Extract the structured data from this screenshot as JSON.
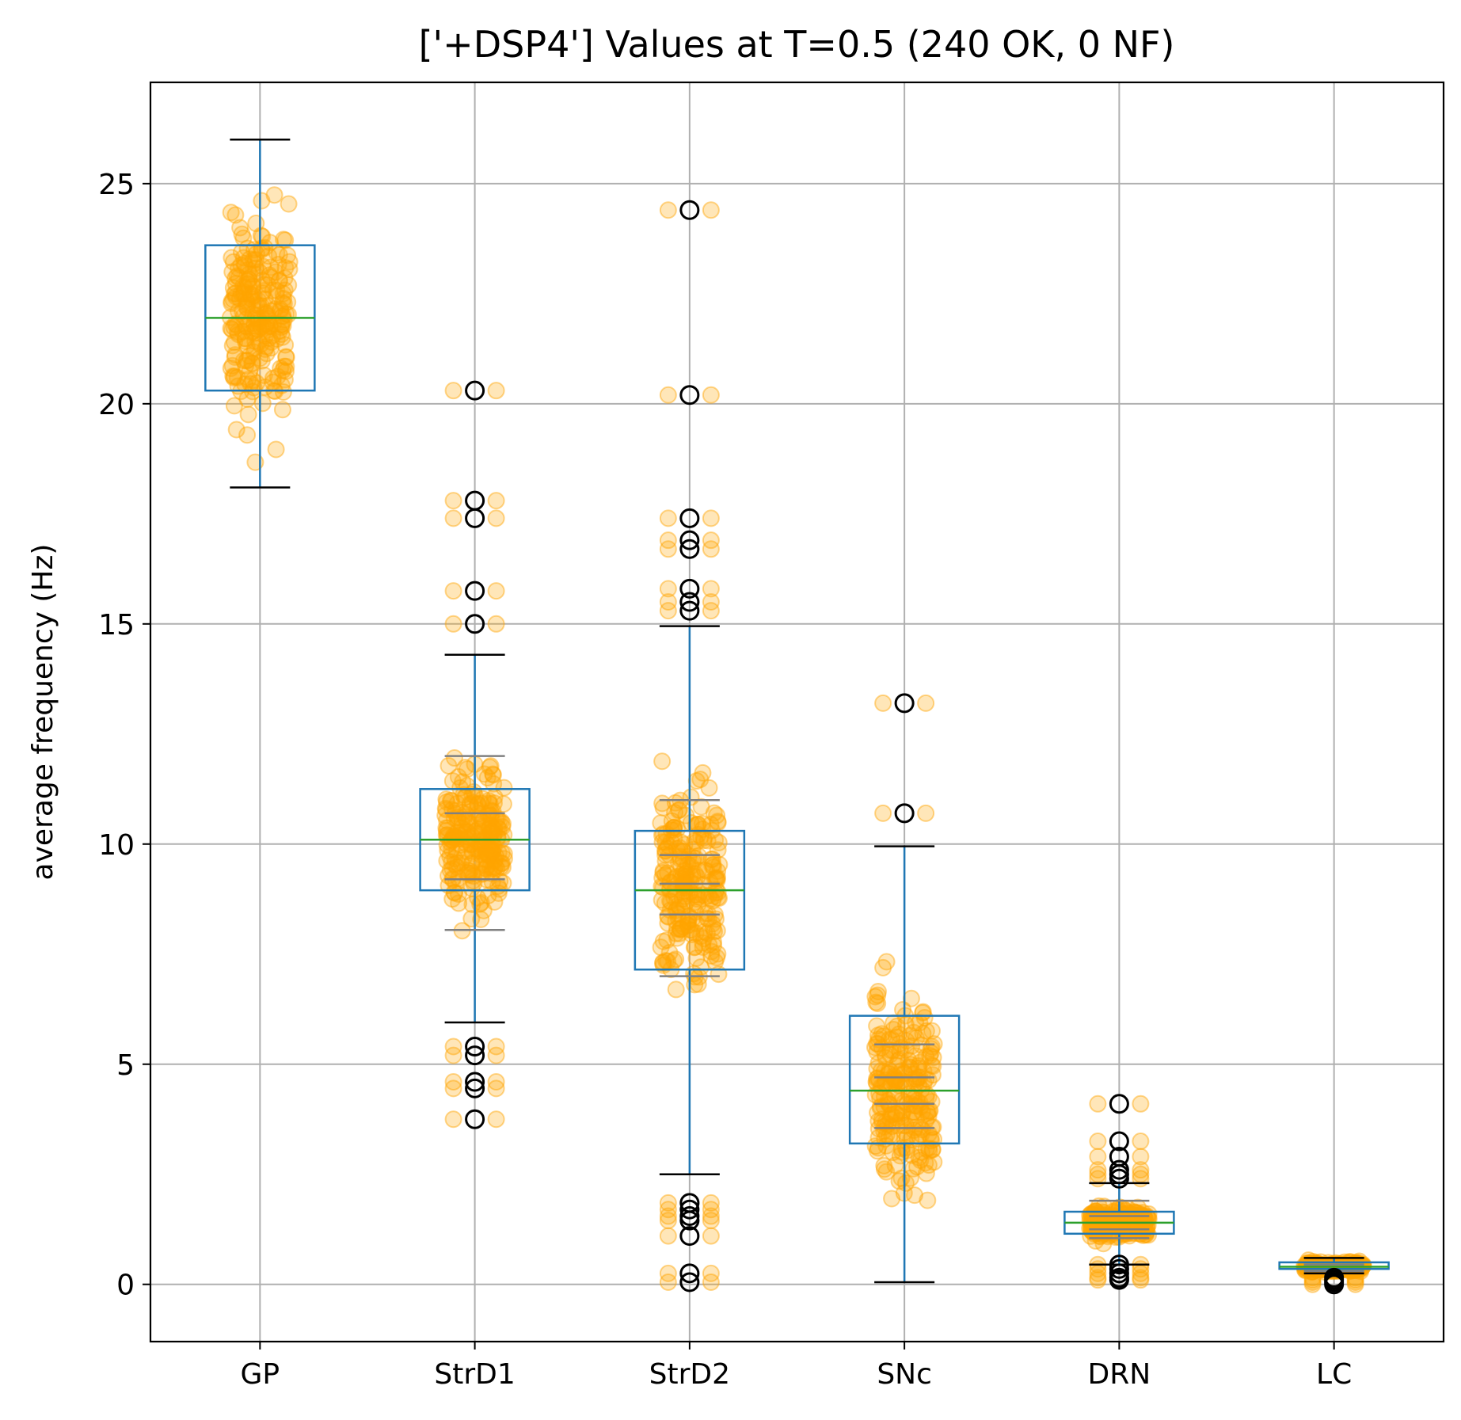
{
  "chart_data": {
    "type": "box",
    "title": "['+DSP4'] Values at T=0.5 (240 OK, 0 NF)",
    "xlabel": "",
    "ylabel": "average frequency (Hz)",
    "ylim": [
      -1.3,
      27.3
    ],
    "yticks": [
      0,
      5,
      10,
      15,
      20,
      25
    ],
    "grid": true,
    "colors": {
      "box": "#1f77b4",
      "median": "#2ca02c",
      "points": "#ffa500",
      "flier": "#000000",
      "percentile": "#808080",
      "grid": "#b0b0b0"
    },
    "categories": [
      "GP",
      "StrD1",
      "StrD2",
      "SNc",
      "DRN",
      "LC"
    ],
    "boxes": [
      {
        "label": "GP",
        "whislo": 18.1,
        "q1": 20.3,
        "med": 21.95,
        "q3": 23.6,
        "whishi": 26.0,
        "pct_lines": [],
        "fliers": [],
        "jitter_range": [
          18.1,
          26.0
        ]
      },
      {
        "label": "StrD1",
        "whislo": 5.95,
        "q1": 8.95,
        "med": 10.1,
        "q3": 11.25,
        "whishi": 14.3,
        "pct_lines": [
          8.05,
          9.2,
          10.7,
          12.0
        ],
        "fliers": [
          20.3,
          17.8,
          17.4,
          15.75,
          15.0,
          5.4,
          5.2,
          4.6,
          4.45,
          3.75
        ],
        "jitter_range": [
          3.75,
          20.3
        ]
      },
      {
        "label": "StrD2",
        "whislo": 2.5,
        "q1": 7.15,
        "med": 8.95,
        "q3": 10.3,
        "whishi": 14.95,
        "pct_lines": [
          7.0,
          8.4,
          9.1,
          9.75,
          11.0
        ],
        "fliers": [
          24.4,
          20.2,
          17.4,
          16.9,
          16.7,
          15.8,
          15.5,
          15.3,
          1.85,
          1.7,
          1.55,
          1.45,
          1.1,
          0.25,
          0.05
        ],
        "jitter_range": [
          0.0,
          24.4
        ]
      },
      {
        "label": "SNc",
        "whislo": 0.05,
        "q1": 3.2,
        "med": 4.4,
        "q3": 6.1,
        "whishi": 9.95,
        "pct_lines": [
          3.55,
          4.1,
          4.7,
          5.45
        ],
        "fliers": [
          13.2,
          10.7
        ],
        "jitter_range": [
          0.0,
          13.2
        ]
      },
      {
        "label": "DRN",
        "whislo": 0.45,
        "q1": 1.15,
        "med": 1.4,
        "q3": 1.65,
        "whishi": 2.3,
        "pct_lines": [
          1.05,
          1.25,
          1.55,
          1.9
        ],
        "fliers": [
          4.1,
          3.25,
          2.9,
          2.6,
          2.5,
          2.4,
          0.45,
          0.35,
          0.25,
          0.15,
          0.1
        ],
        "jitter_range": [
          0.1,
          4.1
        ]
      },
      {
        "label": "LC",
        "whislo": 0.25,
        "q1": 0.35,
        "med": 0.4,
        "q3": 0.5,
        "whishi": 0.6,
        "pct_lines": [
          0.3,
          0.45
        ],
        "fliers": [
          0.15,
          0.1,
          0.05,
          0.0
        ],
        "jitter_range": [
          0.0,
          0.6
        ]
      }
    ]
  }
}
